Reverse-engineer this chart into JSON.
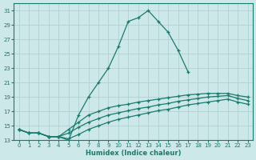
{
  "xlabel": "Humidex (Indice chaleur)",
  "x_values": [
    0,
    1,
    2,
    3,
    4,
    5,
    6,
    7,
    8,
    9,
    10,
    11,
    12,
    13,
    14,
    15,
    16,
    17,
    18,
    19,
    20,
    21,
    22,
    23
  ],
  "line_main": [
    14.5,
    14.0,
    14.0,
    13.5,
    13.5,
    13.0,
    16.5,
    19.0,
    21.0,
    23.0,
    26.0,
    29.5,
    30.0,
    31.0,
    29.5,
    28.0,
    25.5,
    22.5,
    null,
    null,
    null,
    null,
    null,
    null
  ],
  "line_top": [
    14.5,
    14.0,
    14.0,
    13.5,
    13.5,
    14.5,
    15.5,
    16.5,
    17.0,
    17.5,
    17.8,
    18.0,
    18.3,
    18.5,
    18.7,
    18.9,
    19.1,
    19.3,
    19.4,
    19.5,
    19.5,
    19.5,
    19.2,
    19.0
  ],
  "line_mid": [
    14.5,
    14.0,
    14.0,
    13.5,
    13.5,
    14.0,
    14.8,
    15.5,
    16.0,
    16.5,
    16.8,
    17.1,
    17.4,
    17.6,
    17.9,
    18.1,
    18.4,
    18.6,
    18.8,
    19.0,
    19.1,
    19.2,
    18.8,
    18.5
  ],
  "line_bot": [
    14.5,
    14.0,
    14.0,
    13.5,
    13.5,
    13.2,
    13.8,
    14.5,
    15.0,
    15.5,
    15.9,
    16.2,
    16.5,
    16.8,
    17.1,
    17.3,
    17.6,
    17.9,
    18.1,
    18.3,
    18.5,
    18.7,
    18.3,
    18.0
  ],
  "color": "#1a7a6e",
  "bg_color": "#cce8e8",
  "grid_color": "#aacece",
  "ylim": [
    13,
    32
  ],
  "xlim": [
    -0.5,
    23.5
  ],
  "yticks": [
    13,
    15,
    17,
    19,
    21,
    23,
    25,
    27,
    29,
    31
  ],
  "xticks": [
    0,
    1,
    2,
    3,
    4,
    5,
    6,
    7,
    8,
    9,
    10,
    11,
    12,
    13,
    14,
    15,
    16,
    17,
    18,
    19,
    20,
    21,
    22,
    23
  ]
}
